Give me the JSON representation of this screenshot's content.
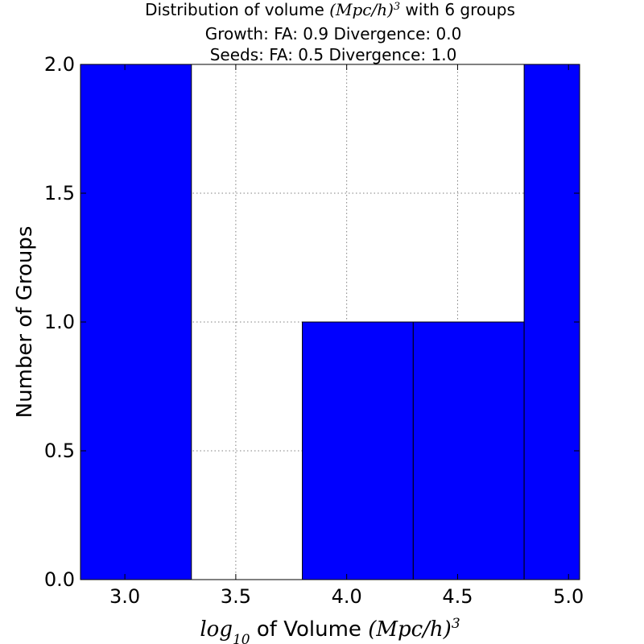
{
  "chart_data": {
    "type": "bar",
    "title_lines": [
      {
        "before": "Distribution of volume ",
        "math": "(Mpc/h)",
        "sup": "3",
        "after": "  with 6 groups"
      },
      {
        "text": "Growth: FA: 0.9 Divergence: 0.0"
      },
      {
        "text": "Seeds: FA: 0.5 Divergence: 1.0"
      }
    ],
    "xlabel": {
      "math_base": "log",
      "math_sub": "10",
      "text": " of Volume ",
      "math_unit": "(Mpc/h)",
      "sup": "3"
    },
    "ylabel": "Number of Groups",
    "xlim": [
      2.8,
      5.05
    ],
    "ylim": [
      0,
      2.0
    ],
    "xticks": [
      "3.0",
      "3.5",
      "4.0",
      "4.5",
      "5.0"
    ],
    "yticks": [
      "0.0",
      "0.5",
      "1.0",
      "1.5",
      "2.0"
    ],
    "grid": true,
    "bar_color": "#0000ff",
    "bins": [
      {
        "x0": 2.8,
        "x1": 3.3,
        "value": 2
      },
      {
        "x0": 3.3,
        "x1": 3.8,
        "value": 0
      },
      {
        "x0": 3.8,
        "x1": 4.3,
        "value": 1
      },
      {
        "x0": 4.3,
        "x1": 4.8,
        "value": 1
      },
      {
        "x0": 4.8,
        "x1": 5.3,
        "value": 2
      }
    ]
  }
}
